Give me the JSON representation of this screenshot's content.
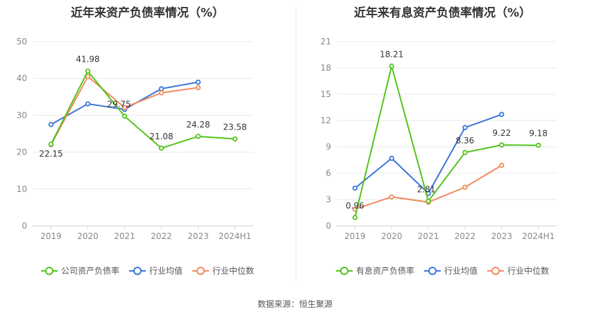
{
  "footer": "数据来源：恒生聚源",
  "colors": {
    "company": "#52c41a",
    "avg": "#3a75d8",
    "median": "#f08a5d"
  },
  "chart_data": [
    {
      "type": "line",
      "title": "近年来资产负债率情况（%）",
      "categories": [
        "2019",
        "2020",
        "2021",
        "2022",
        "2023",
        "2024H1"
      ],
      "ylim": [
        0,
        50
      ],
      "yticks": [
        0,
        10,
        20,
        30,
        40,
        50
      ],
      "yticks_labels": [
        "0",
        "10",
        "20",
        "30",
        "40",
        "50"
      ],
      "grid": true,
      "legend_position": "bottom",
      "series": [
        {
          "name": "公司资产负债率",
          "key": "company",
          "values": [
            22.15,
            41.98,
            29.75,
            21.08,
            24.28,
            23.58
          ],
          "labels": [
            "22.15",
            "41.98",
            "29.75",
            "21.08",
            "24.28",
            "23.58"
          ]
        },
        {
          "name": "行业均值",
          "key": "avg",
          "values": [
            27.5,
            33.1,
            31.6,
            37.2,
            39.0,
            null
          ]
        },
        {
          "name": "行业中位数",
          "key": "median",
          "values": [
            22.0,
            40.5,
            32.1,
            36.1,
            37.5,
            null
          ]
        }
      ]
    },
    {
      "type": "line",
      "title": "近年来有息资产负债率情况（%）",
      "categories": [
        "2019",
        "2020",
        "2021",
        "2022",
        "2023",
        "2024H1"
      ],
      "ylim": [
        0,
        21
      ],
      "yticks": [
        0,
        3,
        6,
        9,
        12,
        15,
        18,
        21
      ],
      "yticks_labels": [
        "0",
        "3",
        "6",
        "9",
        "12",
        "15",
        "18",
        "21"
      ],
      "grid": true,
      "legend_position": "bottom",
      "series": [
        {
          "name": "有息资产负债率",
          "key": "company",
          "values": [
            0.96,
            18.21,
            2.81,
            8.36,
            9.22,
            9.18
          ],
          "labels": [
            "0.96",
            "18.21",
            "2.81",
            "8.36",
            "9.22",
            "9.18"
          ]
        },
        {
          "name": "行业均值",
          "key": "avg",
          "values": [
            4.3,
            7.7,
            3.7,
            11.2,
            12.7,
            null
          ]
        },
        {
          "name": "行业中位数",
          "key": "median",
          "values": [
            1.9,
            3.3,
            2.7,
            4.4,
            6.9,
            null
          ]
        }
      ]
    }
  ]
}
